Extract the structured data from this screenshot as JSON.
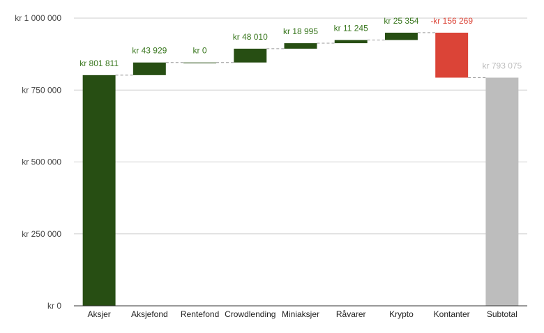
{
  "chart_data": {
    "type": "waterfall",
    "categories": [
      "Aksjer",
      "Aksjefond",
      "Rentefond",
      "Crowdlending",
      "Miniaksjer",
      "Råvarer",
      "Krypto",
      "Kontanter",
      "Subtotal"
    ],
    "values": [
      801811,
      43929,
      0,
      48010,
      18995,
      11245,
      25354,
      -156269,
      793075
    ],
    "data_labels": [
      "kr  801 811",
      "kr  43 929",
      "kr  0",
      "kr  48 010",
      "kr  18 995",
      "kr  11 245",
      "kr  25 354",
      "-kr  156 269",
      "kr  793 075"
    ],
    "kinds": [
      "increase",
      "increase",
      "increase",
      "increase",
      "increase",
      "increase",
      "increase",
      "decrease",
      "total"
    ],
    "ylim": [
      0,
      1000000
    ],
    "y_ticks": [
      0,
      250000,
      500000,
      750000,
      1000000
    ],
    "y_tick_labels": [
      "kr   0",
      "kr  250 000",
      "kr  500 000",
      "kr  750 000",
      "kr 1 000 000"
    ],
    "grid": true,
    "colors": {
      "increase": "#274e13",
      "decrease": "#db4437",
      "total": "#bdbdbd",
      "increase_label": "#38761d",
      "decrease_label": "#db4437",
      "total_label": "#bdbdbd",
      "gridline": "#cccccc",
      "connector": "#999999",
      "axis": "#333333"
    }
  }
}
